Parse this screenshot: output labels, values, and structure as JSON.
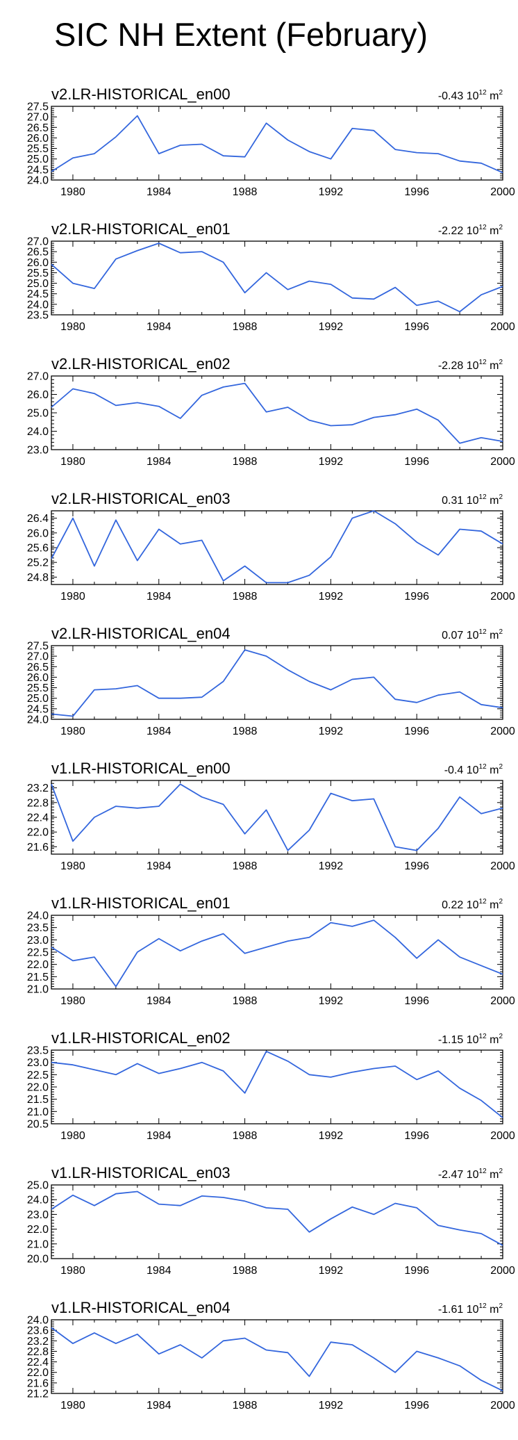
{
  "title": "SIC NH Extent (February)",
  "chart_data": [
    {
      "type": "line",
      "title": "v2.LR-HISTORICAL_en00",
      "trend": "-0.43",
      "unit_base": "10",
      "unit_exp": "12",
      "unit_sym": "m",
      "unit_sup": "2",
      "x": [
        1979,
        1980,
        1981,
        1982,
        1983,
        1984,
        1985,
        1986,
        1987,
        1988,
        1989,
        1990,
        1991,
        1992,
        1993,
        1994,
        1995,
        1996,
        1997,
        1998,
        1999,
        2000
      ],
      "values": [
        24.4,
        25.05,
        25.25,
        26.05,
        27.05,
        25.25,
        25.65,
        25.7,
        25.15,
        25.1,
        26.7,
        25.9,
        25.35,
        25.0,
        26.45,
        26.35,
        25.45,
        25.3,
        25.25,
        24.9,
        24.8,
        24.35
      ],
      "xticks": [
        1980,
        1984,
        1988,
        1992,
        1996,
        2000
      ],
      "xtick_labels": [
        "1980",
        "1984",
        "1988",
        "1992",
        "1996",
        "2000"
      ],
      "yticks": [
        24.0,
        24.5,
        25.0,
        25.5,
        26.0,
        26.5,
        27.0,
        27.5
      ],
      "ytick_labels": [
        "24.0",
        "24.5",
        "25.0",
        "25.5",
        "26.0",
        "26.5",
        "27.0",
        "27.5"
      ],
      "ylim": [
        24.0,
        27.5
      ],
      "xlim": [
        1979,
        2000
      ],
      "color": "#3366dd"
    },
    {
      "type": "line",
      "title": "v2.LR-HISTORICAL_en01",
      "trend": "-2.22",
      "unit_base": "10",
      "unit_exp": "12",
      "unit_sym": "m",
      "unit_sup": "2",
      "x": [
        1979,
        1980,
        1981,
        1982,
        1983,
        1984,
        1985,
        1986,
        1987,
        1988,
        1989,
        1990,
        1991,
        1992,
        1993,
        1994,
        1995,
        1996,
        1997,
        1998,
        1999,
        2000
      ],
      "values": [
        25.9,
        25.0,
        24.75,
        26.15,
        26.55,
        26.9,
        26.45,
        26.5,
        26.0,
        24.55,
        25.5,
        24.7,
        25.1,
        24.95,
        24.3,
        24.25,
        24.8,
        23.95,
        24.15,
        23.65,
        24.45,
        24.85
      ],
      "xticks": [
        1980,
        1984,
        1988,
        1992,
        1996,
        2000
      ],
      "xtick_labels": [
        "1980",
        "1984",
        "1988",
        "1992",
        "1996",
        "2000"
      ],
      "yticks": [
        23.5,
        24.0,
        24.5,
        25.0,
        25.5,
        26.0,
        26.5,
        27.0
      ],
      "ytick_labels": [
        "23.5",
        "24.0",
        "24.5",
        "25.0",
        "25.5",
        "26.0",
        "26.5",
        "27.0"
      ],
      "ylim": [
        23.5,
        27.0
      ],
      "xlim": [
        1979,
        2000
      ],
      "color": "#3366dd"
    },
    {
      "type": "line",
      "title": "v2.LR-HISTORICAL_en02",
      "trend": "-2.28",
      "unit_base": "10",
      "unit_exp": "12",
      "unit_sym": "m",
      "unit_sup": "2",
      "x": [
        1979,
        1980,
        1981,
        1982,
        1983,
        1984,
        1985,
        1986,
        1987,
        1988,
        1989,
        1990,
        1991,
        1992,
        1993,
        1994,
        1995,
        1996,
        1997,
        1998,
        1999,
        2000
      ],
      "values": [
        25.3,
        26.3,
        26.05,
        25.4,
        25.55,
        25.35,
        24.7,
        25.95,
        26.4,
        26.6,
        25.05,
        25.3,
        24.6,
        24.3,
        24.35,
        24.75,
        24.9,
        25.2,
        24.6,
        23.35,
        23.65,
        23.45
      ],
      "xticks": [
        1980,
        1984,
        1988,
        1992,
        1996,
        2000
      ],
      "xtick_labels": [
        "1980",
        "1984",
        "1988",
        "1992",
        "1996",
        "2000"
      ],
      "yticks": [
        23.0,
        24.0,
        25.0,
        26.0,
        27.0
      ],
      "ytick_labels": [
        "23.0",
        "24.0",
        "25.0",
        "26.0",
        "27.0"
      ],
      "ylim": [
        23.0,
        27.0
      ],
      "xlim": [
        1979,
        2000
      ],
      "color": "#3366dd"
    },
    {
      "type": "line",
      "title": "v2.LR-HISTORICAL_en03",
      "trend": "0.31",
      "unit_base": "10",
      "unit_exp": "12",
      "unit_sym": "m",
      "unit_sup": "2",
      "x": [
        1979,
        1980,
        1981,
        1982,
        1983,
        1984,
        1985,
        1986,
        1987,
        1988,
        1989,
        1990,
        1991,
        1992,
        1993,
        1994,
        1995,
        1996,
        1997,
        1998,
        1999,
        2000
      ],
      "values": [
        25.3,
        26.4,
        25.1,
        26.35,
        25.25,
        26.1,
        25.7,
        25.8,
        24.7,
        25.1,
        24.65,
        24.65,
        24.85,
        25.35,
        26.4,
        26.6,
        26.25,
        25.75,
        25.4,
        26.1,
        26.05,
        25.7
      ],
      "xticks": [
        1980,
        1984,
        1988,
        1992,
        1996,
        2000
      ],
      "xtick_labels": [
        "1980",
        "1984",
        "1988",
        "1992",
        "1996",
        "2000"
      ],
      "yticks": [
        24.8,
        25.2,
        25.6,
        26.0,
        26.4
      ],
      "ytick_labels": [
        "24.8",
        "25.2",
        "25.6",
        "26.0",
        "26.4"
      ],
      "ylim": [
        24.6,
        26.6
      ],
      "xlim": [
        1979,
        2000
      ],
      "color": "#3366dd"
    },
    {
      "type": "line",
      "title": "v2.LR-HISTORICAL_en04",
      "trend": "0.07",
      "unit_base": "10",
      "unit_exp": "12",
      "unit_sym": "m",
      "unit_sup": "2",
      "x": [
        1979,
        1980,
        1981,
        1982,
        1983,
        1984,
        1985,
        1986,
        1987,
        1988,
        1989,
        1990,
        1991,
        1992,
        1993,
        1994,
        1995,
        1996,
        1997,
        1998,
        1999,
        2000
      ],
      "values": [
        24.25,
        24.15,
        25.4,
        25.45,
        25.6,
        25.0,
        25.0,
        25.05,
        25.8,
        27.3,
        27.0,
        26.35,
        25.8,
        25.4,
        25.9,
        26.0,
        24.95,
        24.8,
        25.15,
        25.3,
        24.7,
        24.55
      ],
      "xticks": [
        1980,
        1984,
        1988,
        1992,
        1996,
        2000
      ],
      "xtick_labels": [
        "1980",
        "1984",
        "1988",
        "1992",
        "1996",
        "2000"
      ],
      "yticks": [
        24.0,
        24.5,
        25.0,
        25.5,
        26.0,
        26.5,
        27.0,
        27.5
      ],
      "ytick_labels": [
        "24.0",
        "24.5",
        "25.0",
        "25.5",
        "26.0",
        "26.5",
        "27.0",
        "27.5"
      ],
      "ylim": [
        24.0,
        27.5
      ],
      "xlim": [
        1979,
        2000
      ],
      "color": "#3366dd"
    },
    {
      "type": "line",
      "title": "v1.LR-HISTORICAL_en00",
      "trend": "-0.4",
      "unit_base": "10",
      "unit_exp": "12",
      "unit_sym": "m",
      "unit_sup": "2",
      "x": [
        1979,
        1980,
        1981,
        1982,
        1983,
        1984,
        1985,
        1986,
        1987,
        1988,
        1989,
        1990,
        1991,
        1992,
        1993,
        1994,
        1995,
        1996,
        1997,
        1998,
        1999,
        2000
      ],
      "values": [
        23.3,
        21.75,
        22.4,
        22.7,
        22.65,
        22.7,
        23.3,
        22.95,
        22.75,
        21.95,
        22.6,
        21.5,
        22.05,
        23.05,
        22.85,
        22.9,
        21.6,
        21.5,
        22.1,
        22.95,
        22.5,
        22.65
      ],
      "xticks": [
        1980,
        1984,
        1988,
        1992,
        1996,
        2000
      ],
      "xtick_labels": [
        "1980",
        "1984",
        "1988",
        "1992",
        "1996",
        "2000"
      ],
      "yticks": [
        21.6,
        22.0,
        22.4,
        22.8,
        23.2
      ],
      "ytick_labels": [
        "21.6",
        "22.0",
        "22.4",
        "22.8",
        "23.2"
      ],
      "ylim": [
        21.4,
        23.4
      ],
      "xlim": [
        1979,
        2000
      ],
      "color": "#3366dd"
    },
    {
      "type": "line",
      "title": "v1.LR-HISTORICAL_en01",
      "trend": "0.22",
      "unit_base": "10",
      "unit_exp": "12",
      "unit_sym": "m",
      "unit_sup": "2",
      "x": [
        1979,
        1980,
        1981,
        1982,
        1983,
        1984,
        1985,
        1986,
        1987,
        1988,
        1989,
        1990,
        1991,
        1992,
        1993,
        1994,
        1995,
        1996,
        1997,
        1998,
        1999,
        2000
      ],
      "values": [
        22.7,
        22.15,
        22.3,
        21.1,
        22.5,
        23.05,
        22.55,
        22.95,
        23.25,
        22.45,
        22.7,
        22.95,
        23.1,
        23.7,
        23.55,
        23.8,
        23.1,
        22.25,
        23.0,
        22.3,
        21.95,
        21.6
      ],
      "xticks": [
        1980,
        1984,
        1988,
        1992,
        1996,
        2000
      ],
      "xtick_labels": [
        "1980",
        "1984",
        "1988",
        "1992",
        "1996",
        "2000"
      ],
      "yticks": [
        21.0,
        21.5,
        22.0,
        22.5,
        23.0,
        23.5,
        24.0
      ],
      "ytick_labels": [
        "21.0",
        "21.5",
        "22.0",
        "22.5",
        "23.0",
        "23.5",
        "24.0"
      ],
      "ylim": [
        21.0,
        24.0
      ],
      "xlim": [
        1979,
        2000
      ],
      "color": "#3366dd"
    },
    {
      "type": "line",
      "title": "v1.LR-HISTORICAL_en02",
      "trend": "-1.15",
      "unit_base": "10",
      "unit_exp": "12",
      "unit_sym": "m",
      "unit_sup": "2",
      "x": [
        1979,
        1980,
        1981,
        1982,
        1983,
        1984,
        1985,
        1986,
        1987,
        1988,
        1989,
        1990,
        1991,
        1992,
        1993,
        1994,
        1995,
        1996,
        1997,
        1998,
        1999,
        2000
      ],
      "values": [
        23.0,
        22.9,
        22.7,
        22.5,
        22.95,
        22.55,
        22.75,
        23.0,
        22.65,
        21.75,
        23.45,
        23.05,
        22.5,
        22.4,
        22.6,
        22.75,
        22.85,
        22.3,
        22.65,
        21.95,
        21.45,
        20.75
      ],
      "xticks": [
        1980,
        1984,
        1988,
        1992,
        1996,
        2000
      ],
      "xtick_labels": [
        "1980",
        "1984",
        "1988",
        "1992",
        "1996",
        "2000"
      ],
      "yticks": [
        20.5,
        21.0,
        21.5,
        22.0,
        22.5,
        23.0,
        23.5
      ],
      "ytick_labels": [
        "20.5",
        "21.0",
        "21.5",
        "22.0",
        "22.5",
        "23.0",
        "23.5"
      ],
      "ylim": [
        20.5,
        23.5
      ],
      "xlim": [
        1979,
        2000
      ],
      "color": "#3366dd"
    },
    {
      "type": "line",
      "title": "v1.LR-HISTORICAL_en03",
      "trend": "-2.47",
      "unit_base": "10",
      "unit_exp": "12",
      "unit_sym": "m",
      "unit_sup": "2",
      "x": [
        1979,
        1980,
        1981,
        1982,
        1983,
        1984,
        1985,
        1986,
        1987,
        1988,
        1989,
        1990,
        1991,
        1992,
        1993,
        1994,
        1995,
        1996,
        1997,
        1998,
        1999,
        2000
      ],
      "values": [
        23.35,
        24.3,
        23.6,
        24.4,
        24.55,
        23.7,
        23.6,
        24.25,
        24.15,
        23.9,
        23.45,
        23.35,
        21.8,
        22.7,
        23.5,
        23.0,
        23.75,
        23.45,
        22.25,
        21.95,
        21.7,
        20.9
      ],
      "xticks": [
        1980,
        1984,
        1988,
        1992,
        1996,
        2000
      ],
      "xtick_labels": [
        "1980",
        "1984",
        "1988",
        "1992",
        "1996",
        "2000"
      ],
      "yticks": [
        20.0,
        21.0,
        22.0,
        23.0,
        24.0,
        25.0
      ],
      "ytick_labels": [
        "20.0",
        "21.0",
        "22.0",
        "23.0",
        "24.0",
        "25.0"
      ],
      "ylim": [
        20.0,
        25.0
      ],
      "xlim": [
        1979,
        2000
      ],
      "color": "#3366dd"
    },
    {
      "type": "line",
      "title": "v1.LR-HISTORICAL_en04",
      "trend": "-1.61",
      "unit_base": "10",
      "unit_exp": "12",
      "unit_sym": "m",
      "unit_sup": "2",
      "x": [
        1979,
        1980,
        1981,
        1982,
        1983,
        1984,
        1985,
        1986,
        1987,
        1988,
        1989,
        1990,
        1991,
        1992,
        1993,
        1994,
        1995,
        1996,
        1997,
        1998,
        1999,
        2000
      ],
      "values": [
        23.7,
        23.1,
        23.5,
        23.1,
        23.45,
        22.7,
        23.05,
        22.55,
        23.2,
        23.3,
        22.85,
        22.75,
        21.85,
        23.15,
        23.05,
        22.55,
        22.0,
        22.8,
        22.55,
        22.25,
        21.7,
        21.3
      ],
      "xticks": [
        1980,
        1984,
        1988,
        1992,
        1996,
        2000
      ],
      "xtick_labels": [
        "1980",
        "1984",
        "1988",
        "1992",
        "1996",
        "2000"
      ],
      "yticks": [
        21.2,
        21.6,
        22.0,
        22.4,
        22.8,
        23.2,
        23.6,
        24.0
      ],
      "ytick_labels": [
        "21.2",
        "21.6",
        "22.0",
        "22.4",
        "22.8",
        "23.2",
        "23.6",
        "24.0"
      ],
      "ylim": [
        21.2,
        24.0
      ],
      "xlim": [
        1979,
        2000
      ],
      "color": "#3366dd"
    }
  ]
}
